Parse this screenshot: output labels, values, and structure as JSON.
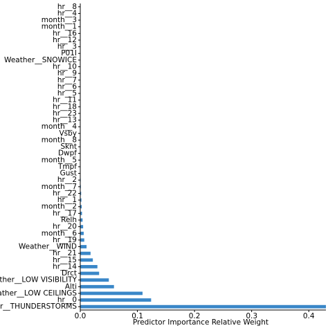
{
  "chart_data": {
    "type": "barh",
    "xlabel": "Predictor Importance Relative Weight",
    "categories": [
      "hr__8",
      "hr__4",
      "month__3",
      "month__1",
      "hr__16",
      "hr__12",
      "hr__3",
      "P01I",
      "Weather__SNOWICE",
      "hr__10",
      "hr__9",
      "hr__7",
      "hr__6",
      "hr__5",
      "hr__11",
      "hr__18",
      "hr__23",
      "hr__13",
      "month__4",
      "Vsby",
      "month__8",
      "Sknt",
      "Dwpf",
      "month__5",
      "Tmpf",
      "Gust",
      "hr__2",
      "month__7",
      "hr__22",
      "hr__1",
      "month__2",
      "hr__17",
      "Relh",
      "hr__20",
      "month__6",
      "hr__19",
      "Weather__WIND",
      "hr__21",
      "hr__15",
      "hr__14",
      "Drct",
      "Weather__LOW VISIBILITY",
      "Alti",
      "Weather__LOW CEILINGS",
      "hr__0",
      "Weather__THUNDERSTORMS"
    ],
    "values": [
      0,
      0,
      0,
      0,
      0,
      0,
      0,
      0,
      0,
      0,
      0,
      0,
      0,
      0,
      0.0001,
      0.0001,
      0.0001,
      0.0001,
      0.0002,
      0.0002,
      0.0002,
      0.0003,
      0.0003,
      0.0003,
      0.0004,
      0.0005,
      0.0008,
      0.001,
      0.0015,
      0.002,
      0.0025,
      0.003,
      0.004,
      0.005,
      0.006,
      0.007,
      0.011,
      0.018,
      0.022,
      0.03,
      0.033,
      0.05,
      0.059,
      0.109,
      0.124,
      0.43
    ],
    "color": "#3a87c8",
    "xlim": [
      0,
      0.43
    ],
    "xticks": [
      {
        "value": 0,
        "label": "0.0"
      },
      0.1,
      0.2,
      0.3,
      0.4
    ]
  }
}
